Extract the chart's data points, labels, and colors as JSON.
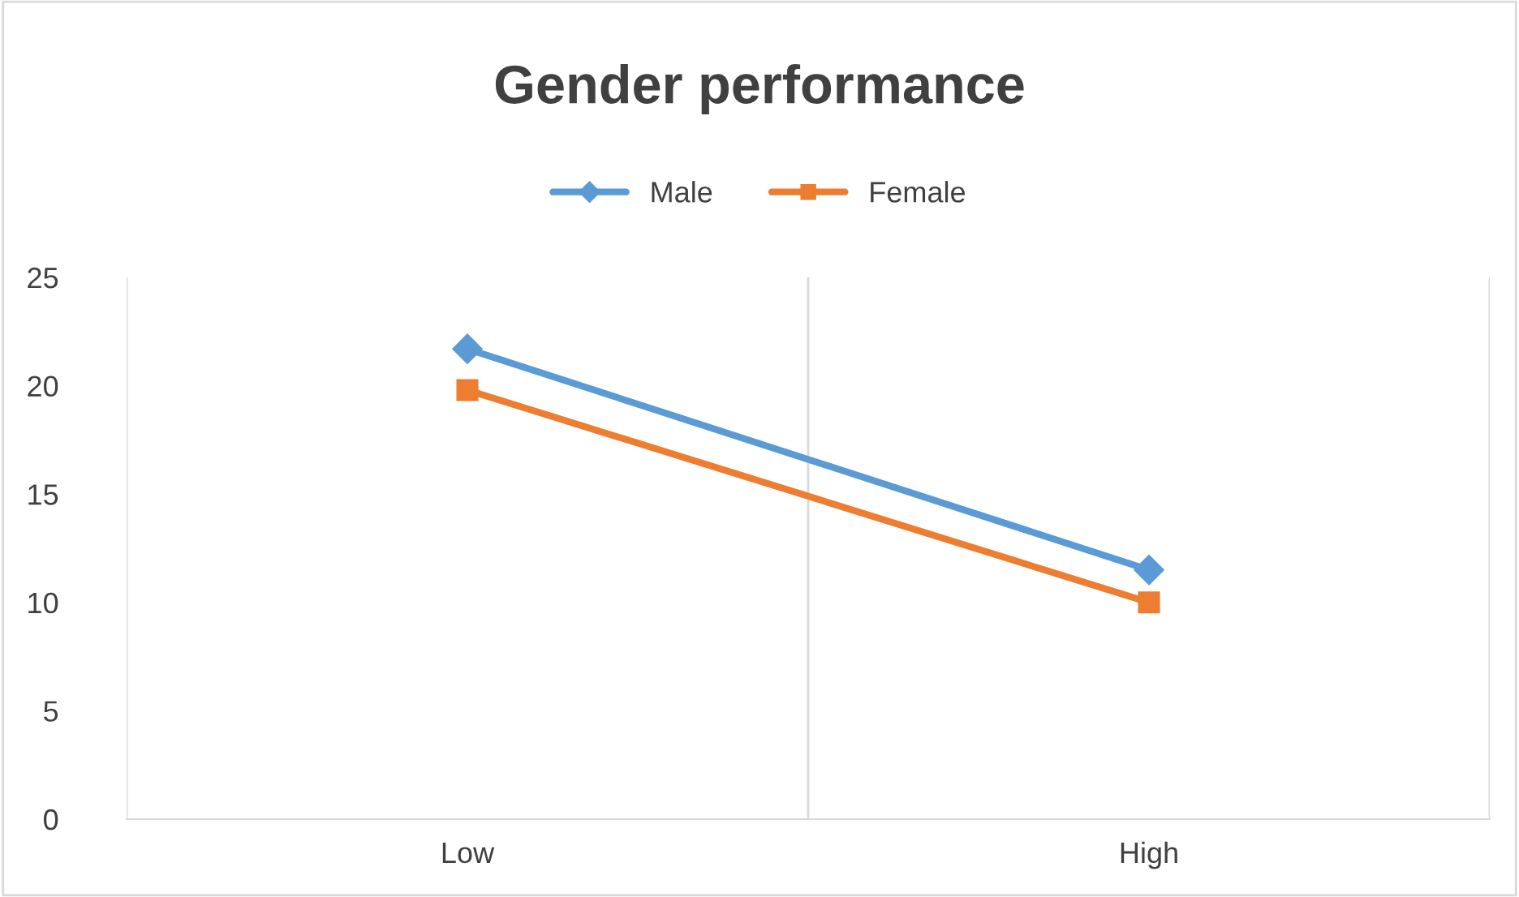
{
  "chart_data": {
    "type": "line",
    "title": "Gender performance",
    "categories": [
      "Low",
      "High"
    ],
    "series": [
      {
        "name": "Male",
        "color": "#5b9bd5",
        "marker": "diamond",
        "values": [
          21.7,
          11.5
        ]
      },
      {
        "name": "Female",
        "color": "#ed7d31",
        "marker": "square",
        "values": [
          19.8,
          10.0
        ]
      }
    ],
    "ylim": [
      0,
      25
    ],
    "yticks": [
      0,
      5,
      10,
      15,
      20,
      25
    ],
    "grid": "x",
    "legend": "top"
  }
}
